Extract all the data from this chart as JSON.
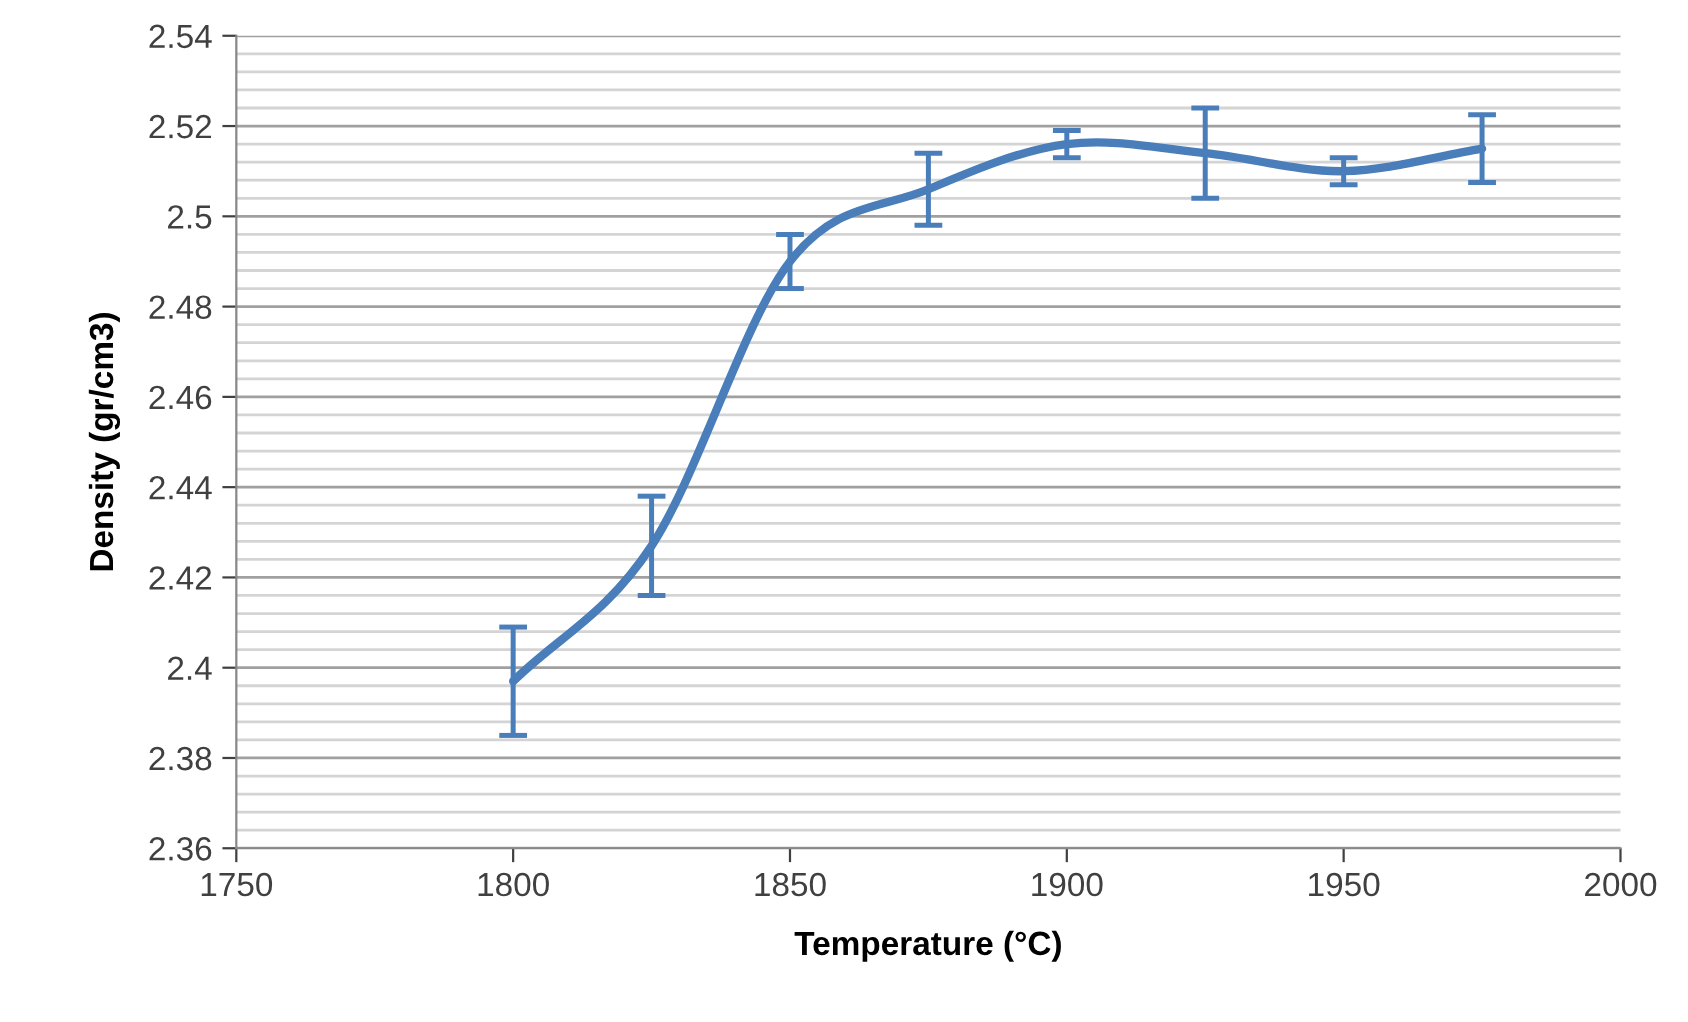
{
  "chart_data": {
    "type": "line",
    "xlabel": "Temperature (°C)",
    "ylabel": "Density (gr/cm3)",
    "x": [
      1800,
      1825,
      1850,
      1875,
      1900,
      1925,
      1950,
      1975
    ],
    "series": [
      {
        "color": "#4a7ebb",
        "values": [
          2.397,
          2.427,
          2.49,
          2.506,
          2.516,
          2.514,
          2.51,
          2.515
        ],
        "errors": [
          0.012,
          0.011,
          0.006,
          0.008,
          0.003,
          0.01,
          0.003,
          0.0075
        ]
      }
    ],
    "xlim": [
      1750,
      2000
    ],
    "xticks": [
      1750,
      1800,
      1850,
      1900,
      1950,
      2000
    ],
    "ylim": [
      2.36,
      2.54
    ],
    "yticks": [
      2.36,
      2.38,
      2.4,
      2.42,
      2.44,
      2.46,
      2.48,
      2.5,
      2.52,
      2.54
    ],
    "grid": "y",
    "legend": false,
    "marker": "none",
    "line_style": "solid"
  }
}
